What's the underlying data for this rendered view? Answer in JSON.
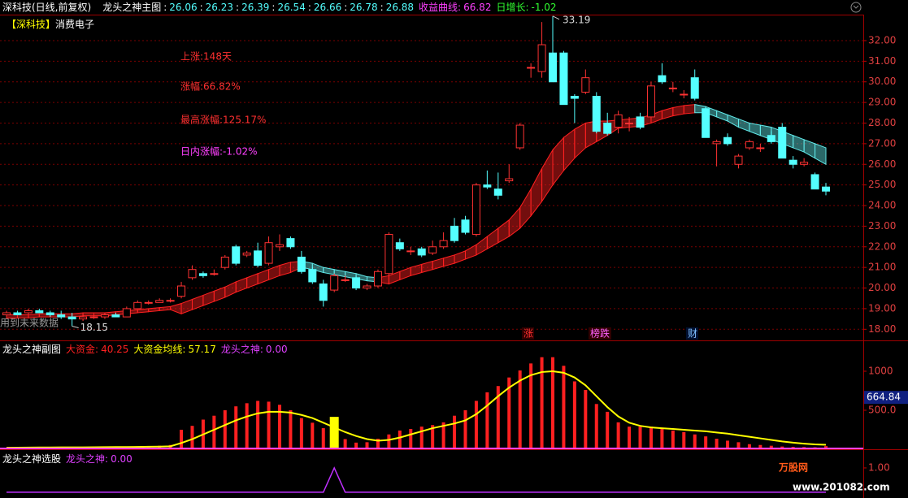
{
  "header": {
    "stock": "深科技(日线,前复权)",
    "indicator": "龙头之神主图",
    "ma_values": [
      26.06,
      26.23,
      26.39,
      26.54,
      26.66,
      26.78,
      26.88
    ],
    "separator": ":",
    "profit_label": "收益曲线:",
    "profit": 66.82,
    "daily_label": "日增长:",
    "daily": -1.02,
    "tag": "【深科技】",
    "sector": "消费电子"
  },
  "chart_data": [
    {
      "type": "candlestick",
      "open": [
        18.7,
        18.8,
        18.8,
        18.9,
        18.8,
        18.7,
        18.6,
        18.5,
        18.6,
        18.6,
        18.7,
        18.6,
        19.0,
        19.3,
        19.3,
        19.4,
        19.6,
        20.5,
        20.7,
        20.7,
        21.0,
        22.0,
        21.6,
        21.8,
        21.2,
        22.0,
        22.4,
        21.5,
        20.9,
        20.2,
        19.9,
        20.4,
        20.5,
        20.0,
        20.1,
        20.7,
        22.2,
        21.8,
        21.9,
        21.7,
        22.0,
        23.0,
        23.3,
        22.6,
        25.0,
        24.8,
        25.2,
        26.8,
        30.7,
        30.5,
        31.4,
        31.4,
        29.3,
        29.5,
        29.3,
        28.0,
        27.8,
        28.0,
        28.3,
        28.3,
        30.3,
        29.7,
        29.4,
        30.2,
        28.7,
        27.0,
        27.3,
        26.0,
        26.8,
        26.8,
        27.4,
        27.8,
        26.2,
        26.0,
        25.5,
        24.9
      ],
      "high": [
        18.9,
        18.9,
        19.0,
        19.0,
        18.9,
        18.9,
        18.8,
        18.7,
        18.7,
        18.8,
        18.8,
        19.1,
        19.4,
        19.4,
        19.5,
        19.5,
        20.3,
        21.1,
        20.8,
        20.9,
        21.6,
        22.1,
        21.8,
        22.2,
        22.5,
        22.6,
        22.5,
        21.8,
        21.0,
        20.4,
        20.7,
        20.6,
        20.6,
        20.2,
        20.9,
        22.7,
        22.4,
        22.0,
        22.0,
        22.3,
        22.7,
        23.4,
        23.5,
        25.1,
        25.7,
        25.6,
        26.0,
        28.0,
        30.9,
        32.9,
        33.19,
        31.5,
        29.4,
        30.6,
        29.5,
        28.5,
        28.6,
        28.3,
        28.5,
        30.0,
        30.9,
        30.0,
        29.6,
        30.6,
        28.8,
        27.2,
        27.5,
        26.5,
        27.2,
        27.0,
        27.6,
        28.0,
        26.4,
        26.3,
        25.6,
        25.1
      ],
      "low": [
        18.6,
        18.7,
        18.7,
        18.8,
        18.6,
        18.5,
        18.15,
        18.4,
        18.5,
        18.5,
        18.6,
        18.6,
        19.0,
        19.2,
        19.3,
        19.3,
        19.5,
        20.4,
        20.5,
        20.6,
        20.9,
        21.1,
        21.5,
        21.0,
        21.1,
        21.8,
        21.9,
        20.7,
        20.2,
        19.1,
        19.8,
        20.3,
        19.9,
        19.9,
        20.0,
        20.6,
        21.8,
        21.6,
        21.5,
        21.6,
        21.9,
        22.2,
        22.6,
        22.5,
        24.8,
        24.3,
        25.1,
        26.7,
        30.2,
        30.2,
        30.0,
        28.9,
        28.0,
        29.4,
        27.5,
        27.4,
        27.5,
        27.6,
        27.7,
        28.2,
        29.9,
        29.5,
        29.2,
        29.1,
        27.3,
        25.9,
        26.9,
        25.8,
        26.7,
        26.6,
        27.0,
        26.3,
        25.8,
        25.9,
        24.8,
        24.5
      ],
      "close": [
        18.8,
        18.7,
        18.9,
        18.8,
        18.7,
        18.6,
        18.5,
        18.6,
        18.6,
        18.7,
        18.6,
        19.0,
        19.3,
        19.3,
        19.4,
        19.4,
        20.1,
        20.9,
        20.6,
        20.7,
        21.5,
        21.2,
        21.7,
        21.1,
        22.2,
        22.1,
        22.0,
        20.8,
        20.3,
        19.4,
        20.6,
        20.4,
        20.0,
        20.1,
        20.8,
        22.6,
        21.9,
        21.8,
        21.6,
        22.0,
        22.3,
        22.3,
        22.7,
        25.0,
        24.9,
        24.5,
        25.3,
        27.9,
        30.7,
        31.8,
        30.0,
        28.9,
        29.2,
        30.2,
        27.6,
        27.5,
        28.4,
        28.0,
        27.8,
        29.8,
        30.0,
        29.7,
        29.4,
        29.2,
        27.3,
        27.1,
        27.0,
        26.4,
        27.1,
        26.8,
        27.1,
        26.3,
        26.0,
        26.1,
        24.8,
        24.7
      ],
      "up_color": "#ff3232",
      "down_color": "#54ffff",
      "ylim": [
        17.5,
        33.26
      ],
      "yticks": [
        {
          "value": 18,
          "label": "18.00"
        },
        {
          "value": 19,
          "label": "19.00"
        },
        {
          "value": 20,
          "label": "20.00"
        },
        {
          "value": 21,
          "label": "21.00"
        },
        {
          "value": 22,
          "label": "22.00"
        },
        {
          "value": 23,
          "label": "23.00"
        },
        {
          "value": 24,
          "label": "24.00"
        },
        {
          "value": 25,
          "label": "25.00"
        },
        {
          "value": 26,
          "label": "26.00"
        },
        {
          "value": 27,
          "label": "27.00"
        },
        {
          "value": 28,
          "label": "28.00"
        },
        {
          "value": 29,
          "label": "29.00"
        },
        {
          "value": 30,
          "label": "30.00"
        },
        {
          "value": 31,
          "label": "31.00"
        },
        {
          "value": 32,
          "label": "32.00"
        }
      ],
      "grid": true,
      "ribbon": {
        "upper": [
          18.7,
          18.7,
          18.7,
          18.75,
          18.75,
          18.75,
          18.75,
          18.8,
          18.8,
          18.8,
          18.85,
          18.9,
          18.95,
          19.0,
          19.05,
          19.1,
          19.25,
          19.45,
          19.65,
          19.85,
          20.05,
          20.3,
          20.5,
          20.7,
          20.9,
          21.1,
          21.25,
          21.3,
          21.2,
          21.0,
          20.9,
          20.8,
          20.7,
          20.55,
          20.5,
          20.6,
          20.8,
          21.0,
          21.15,
          21.3,
          21.45,
          21.6,
          21.8,
          22.1,
          22.5,
          22.9,
          23.3,
          23.9,
          24.8,
          25.8,
          26.7,
          27.3,
          27.7,
          28.0,
          28.1,
          28.1,
          28.15,
          28.2,
          28.25,
          28.4,
          28.6,
          28.75,
          28.85,
          28.9,
          28.8,
          28.6,
          28.4,
          28.2,
          28.0,
          27.9,
          27.8,
          27.6,
          27.4,
          27.2,
          27.0,
          26.8
        ],
        "lower": [
          18.55,
          18.55,
          18.55,
          18.6,
          18.6,
          18.6,
          18.6,
          18.65,
          18.65,
          18.65,
          18.7,
          18.75,
          18.8,
          18.85,
          18.9,
          18.95,
          18.75,
          18.95,
          19.15,
          19.35,
          19.55,
          19.8,
          20.0,
          20.2,
          20.4,
          20.6,
          20.75,
          21.0,
          20.9,
          20.75,
          20.65,
          20.55,
          20.45,
          20.35,
          20.3,
          20.2,
          20.4,
          20.6,
          20.75,
          20.9,
          21.05,
          21.2,
          21.4,
          21.6,
          21.9,
          22.2,
          22.5,
          22.9,
          23.5,
          24.2,
          25.0,
          25.7,
          26.3,
          26.8,
          27.1,
          27.4,
          27.75,
          27.8,
          27.85,
          28.0,
          28.2,
          28.35,
          28.45,
          28.5,
          28.5,
          28.3,
          28.1,
          27.8,
          27.6,
          27.4,
          27.2,
          27.0,
          26.8,
          26.6,
          26.3,
          26.0
        ],
        "up_color": "#ff2020",
        "down_color": "#60e8e8"
      },
      "annotations": [
        "上涨:148天",
        "涨幅:66.82%",
        "最高涨幅:125.17%",
        "日内涨幅:-1.02%"
      ],
      "high_label": 33.19,
      "low_label": 18.15,
      "note": "用到未来数据",
      "markers": [
        "涨",
        "榜跌",
        "财"
      ]
    },
    {
      "type": "bar",
      "title": "龙头之神副图",
      "series": [
        {
          "color": "#ff2020",
          "values": [
            20,
            22,
            25,
            28,
            30,
            28,
            25,
            25,
            28,
            30,
            30,
            32,
            38,
            42,
            45,
            55,
            250,
            300,
            380,
            430,
            500,
            550,
            590,
            620,
            610,
            570,
            500,
            400,
            340,
            270,
            null,
            130,
            85,
            90,
            135,
            190,
            240,
            260,
            290,
            310,
            345,
            430,
            500,
            620,
            730,
            810,
            920,
            1010,
            1100,
            1180,
            1180,
            1070,
            870,
            760,
            580,
            480,
            345,
            290,
            290,
            290,
            270,
            240,
            220,
            190,
            165,
            135,
            110,
            90,
            65,
            55,
            45,
            35,
            30,
            28,
            25,
            40.25
          ]
        },
        {
          "color": "#ffff00",
          "values": [
            null,
            null,
            null,
            null,
            null,
            null,
            null,
            null,
            null,
            null,
            null,
            null,
            null,
            null,
            null,
            null,
            null,
            null,
            null,
            null,
            null,
            null,
            null,
            null,
            null,
            null,
            null,
            null,
            null,
            null,
            415,
            null,
            null,
            null,
            null,
            null,
            null,
            null,
            null,
            null,
            null,
            null,
            null,
            null,
            null,
            null,
            null,
            null,
            null,
            null,
            null,
            null,
            null,
            null,
            null,
            null,
            null,
            null,
            null,
            null,
            null,
            null,
            null,
            null,
            null,
            null,
            null,
            null,
            null,
            null,
            null,
            null,
            null,
            null,
            null,
            null
          ]
        },
        {
          "type": "line",
          "color": "#ffff00",
          "values": [
            20,
            21,
            22,
            23,
            24,
            25,
            25,
            25,
            26,
            27,
            28,
            29,
            30,
            32,
            34,
            38,
            80,
            130,
            190,
            250,
            310,
            370,
            420,
            460,
            480,
            480,
            470,
            440,
            400,
            340,
            280,
            220,
            170,
            130,
            110,
            120,
            150,
            190,
            230,
            270,
            300,
            330,
            370,
            450,
            560,
            680,
            790,
            880,
            950,
            990,
            1000,
            980,
            920,
            820,
            680,
            540,
            420,
            340,
            300,
            280,
            270,
            260,
            250,
            240,
            230,
            215,
            200,
            180,
            160,
            140,
            120,
            100,
            85,
            72,
            62,
            57.17
          ]
        }
      ],
      "legend": [
        {
          "name": "大资金:",
          "value": 40.25,
          "color": "#ff2020"
        },
        {
          "name": "大资金均线:",
          "value": 57.17,
          "color": "#ffff00"
        },
        {
          "name": "龙头之神:",
          "value": 0,
          "value_label": "0.00",
          "color": "#e040ff"
        }
      ],
      "ylim": [
        0,
        1385
      ],
      "yticks": [
        {
          "value": 500,
          "label": "500.0"
        },
        1000
      ],
      "cursor_value": 664.84
    },
    {
      "type": "line",
      "title": "龙头之神选股",
      "series": [
        {
          "color": "#c030ff",
          "values": [
            0,
            0,
            0,
            0,
            0,
            0,
            0,
            0,
            0,
            0,
            0,
            0,
            0,
            0,
            0,
            0,
            0,
            0,
            0,
            0,
            0,
            0,
            0,
            0,
            0,
            0,
            0,
            0,
            0,
            0,
            1,
            0,
            0,
            0,
            0,
            0,
            0,
            0,
            0,
            0,
            0,
            0,
            0,
            0,
            0,
            0,
            0,
            0,
            0,
            0,
            0,
            0,
            0,
            0,
            0,
            0,
            0,
            0,
            0,
            0,
            0,
            0,
            0,
            0,
            0,
            0,
            0,
            0,
            0,
            0,
            0,
            0,
            0,
            0,
            0,
            0
          ]
        }
      ],
      "legend": [
        {
          "name": "龙头之神:",
          "value": 0,
          "value_label": "0.00",
          "color": "#e040ff"
        }
      ],
      "ylim": [
        -0.17,
        1.7
      ],
      "yticks": [
        {
          "value": 1,
          "label": "1.00"
        }
      ]
    }
  ],
  "watermark": {
    "brand": "万股网",
    "url": "www.201082.com"
  }
}
